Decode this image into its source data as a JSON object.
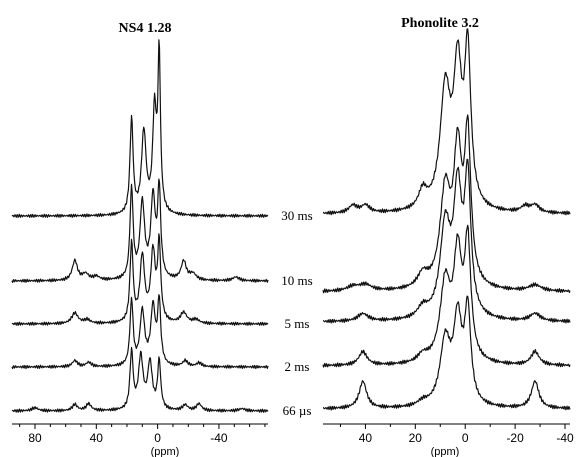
{
  "chart_data": [
    {
      "type": "line",
      "title": "NS4 1.28",
      "xlabel": "(ppm)",
      "x_reversed": true,
      "xlim": [
        95,
        -72
      ],
      "xticks": [
        80,
        40,
        0,
        -40
      ],
      "tick_labels": [
        "80",
        "40",
        "0",
        "-40"
      ],
      "series": [
        {
          "name": "66 µs",
          "peaks": [
            {
              "ppm": 80,
              "amp": 0.25,
              "w": 2.5
            },
            {
              "ppm": 54,
              "amp": 0.5,
              "w": 2
            },
            {
              "ppm": 45,
              "amp": 0.55,
              "w": 2
            },
            {
              "ppm": 17,
              "amp": 4.6,
              "w": 1.2
            },
            {
              "ppm": 11,
              "amp": 4.2,
              "w": 1.8
            },
            {
              "ppm": 5,
              "amp": 3.7,
              "w": 1.8
            },
            {
              "ppm": -1,
              "amp": 3.9,
              "w": 1.2
            },
            {
              "ppm": -18,
              "amp": 0.45,
              "w": 2
            },
            {
              "ppm": -27,
              "amp": 0.55,
              "w": 2
            },
            {
              "ppm": -55,
              "amp": 0.18,
              "w": 2.5
            }
          ]
        },
        {
          "name": "2 ms",
          "peaks": [
            {
              "ppm": 54,
              "amp": 0.5,
              "w": 2
            },
            {
              "ppm": 45,
              "amp": 0.35,
              "w": 2
            },
            {
              "ppm": 17,
              "amp": 5.2,
              "w": 1.2
            },
            {
              "ppm": 10,
              "amp": 4.3,
              "w": 1.8
            },
            {
              "ppm": 3,
              "amp": 4.6,
              "w": 1.8
            },
            {
              "ppm": -1,
              "amp": 5.0,
              "w": 1.2
            },
            {
              "ppm": -18,
              "amp": 0.45,
              "w": 2
            },
            {
              "ppm": -27,
              "amp": 0.3,
              "w": 2
            }
          ]
        },
        {
          "name": "5 ms",
          "peaks": [
            {
              "ppm": 54,
              "amp": 0.85,
              "w": 2.5
            },
            {
              "ppm": 46,
              "amp": 0.3,
              "w": 2.5
            },
            {
              "ppm": 17,
              "amp": 6.3,
              "w": 1.2
            },
            {
              "ppm": 10,
              "amp": 5.2,
              "w": 1.8
            },
            {
              "ppm": 3,
              "amp": 5.5,
              "w": 1.8
            },
            {
              "ppm": -1,
              "amp": 6.1,
              "w": 1.2
            },
            {
              "ppm": -17,
              "amp": 0.85,
              "w": 2.5
            },
            {
              "ppm": -25,
              "amp": 0.3,
              "w": 2.5
            }
          ]
        },
        {
          "name": "10 ms",
          "peaks": [
            {
              "ppm": 54,
              "amp": 1.6,
              "w": 2
            },
            {
              "ppm": 47,
              "amp": 0.5,
              "w": 2.5
            },
            {
              "ppm": 40,
              "amp": 0.3,
              "w": 2.5
            },
            {
              "ppm": 17,
              "amp": 7.2,
              "w": 1.2
            },
            {
              "ppm": 10,
              "amp": 6.0,
              "w": 1.8
            },
            {
              "ppm": 3,
              "amp": 6.4,
              "w": 1.8
            },
            {
              "ppm": -1,
              "amp": 7.0,
              "w": 1.2
            },
            {
              "ppm": -17,
              "amp": 1.5,
              "w": 2
            },
            {
              "ppm": -23,
              "amp": 0.5,
              "w": 2.5
            },
            {
              "ppm": -51,
              "amp": 0.3,
              "w": 2.5
            }
          ]
        },
        {
          "name": "30 ms",
          "peaks": [
            {
              "ppm": 17,
              "amp": 7.6,
              "w": 1.2
            },
            {
              "ppm": 9,
              "amp": 6.5,
              "w": 1.8
            },
            {
              "ppm": 2,
              "amp": 8.0,
              "w": 1.5
            },
            {
              "ppm": -1,
              "amp": 12.4,
              "w": 1.0
            }
          ]
        }
      ]
    },
    {
      "type": "line",
      "title": "Phonolite 3.2",
      "xlabel": "(ppm)",
      "x_reversed": true,
      "xlim": [
        57,
        -42
      ],
      "xticks": [
        40,
        20,
        0,
        -20,
        -40
      ],
      "tick_labels": [
        "40",
        "20",
        "0",
        "-20",
        "-40"
      ],
      "series": [
        {
          "name": "66 µs",
          "peaks": [
            {
              "ppm": 41,
              "amp": 1.8,
              "w": 1.8
            },
            {
              "ppm": 17,
              "amp": 0.3,
              "w": 2.5
            },
            {
              "ppm": 8,
              "amp": 4.3,
              "w": 2.5
            },
            {
              "ppm": 3,
              "amp": 5.5,
              "w": 2.0
            },
            {
              "ppm": -1,
              "amp": 6.1,
              "w": 1.5
            },
            {
              "ppm": -28,
              "amp": 1.8,
              "w": 1.8
            }
          ]
        },
        {
          "name": "2 ms",
          "peaks": [
            {
              "ppm": 41,
              "amp": 0.9,
              "w": 2.0
            },
            {
              "ppm": 17,
              "amp": 0.5,
              "w": 2.5
            },
            {
              "ppm": 8,
              "amp": 5.2,
              "w": 2.5
            },
            {
              "ppm": 3,
              "amp": 6.8,
              "w": 2.0
            },
            {
              "ppm": -1,
              "amp": 7.6,
              "w": 1.5
            },
            {
              "ppm": -28,
              "amp": 0.9,
              "w": 2.0
            }
          ]
        },
        {
          "name": "5 ms",
          "peaks": [
            {
              "ppm": 41,
              "amp": 0.5,
              "w": 2.5
            },
            {
              "ppm": 17,
              "amp": 0.7,
              "w": 2.5
            },
            {
              "ppm": 8,
              "amp": 6.0,
              "w": 2.5
            },
            {
              "ppm": 3,
              "amp": 8.0,
              "w": 2.0
            },
            {
              "ppm": -1,
              "amp": 8.8,
              "w": 1.5
            },
            {
              "ppm": -28,
              "amp": 0.5,
              "w": 2.5
            }
          ]
        },
        {
          "name": "10 ms",
          "peaks": [
            {
              "ppm": 45,
              "amp": 0.3,
              "w": 3
            },
            {
              "ppm": 40,
              "amp": 0.4,
              "w": 3
            },
            {
              "ppm": 17,
              "amp": 0.9,
              "w": 2.5
            },
            {
              "ppm": 8,
              "amp": 6.3,
              "w": 2.5
            },
            {
              "ppm": 3,
              "amp": 8.5,
              "w": 2.0
            },
            {
              "ppm": -1,
              "amp": 9.6,
              "w": 1.5
            },
            {
              "ppm": -28,
              "amp": 0.4,
              "w": 3
            }
          ]
        },
        {
          "name": "30 ms",
          "peaks": [
            {
              "ppm": 45,
              "amp": 0.5,
              "w": 2
            },
            {
              "ppm": 40,
              "amp": 0.5,
              "w": 2
            },
            {
              "ppm": 17,
              "amp": 1.2,
              "w": 2.0
            },
            {
              "ppm": 8,
              "amp": 7.8,
              "w": 2.5
            },
            {
              "ppm": 3,
              "amp": 8.8,
              "w": 2.0
            },
            {
              "ppm": -1,
              "amp": 10.0,
              "w": 1.5
            },
            {
              "ppm": -24,
              "amp": 0.4,
              "w": 2
            },
            {
              "ppm": -28,
              "amp": 0.5,
              "w": 2
            }
          ]
        }
      ]
    }
  ]
}
